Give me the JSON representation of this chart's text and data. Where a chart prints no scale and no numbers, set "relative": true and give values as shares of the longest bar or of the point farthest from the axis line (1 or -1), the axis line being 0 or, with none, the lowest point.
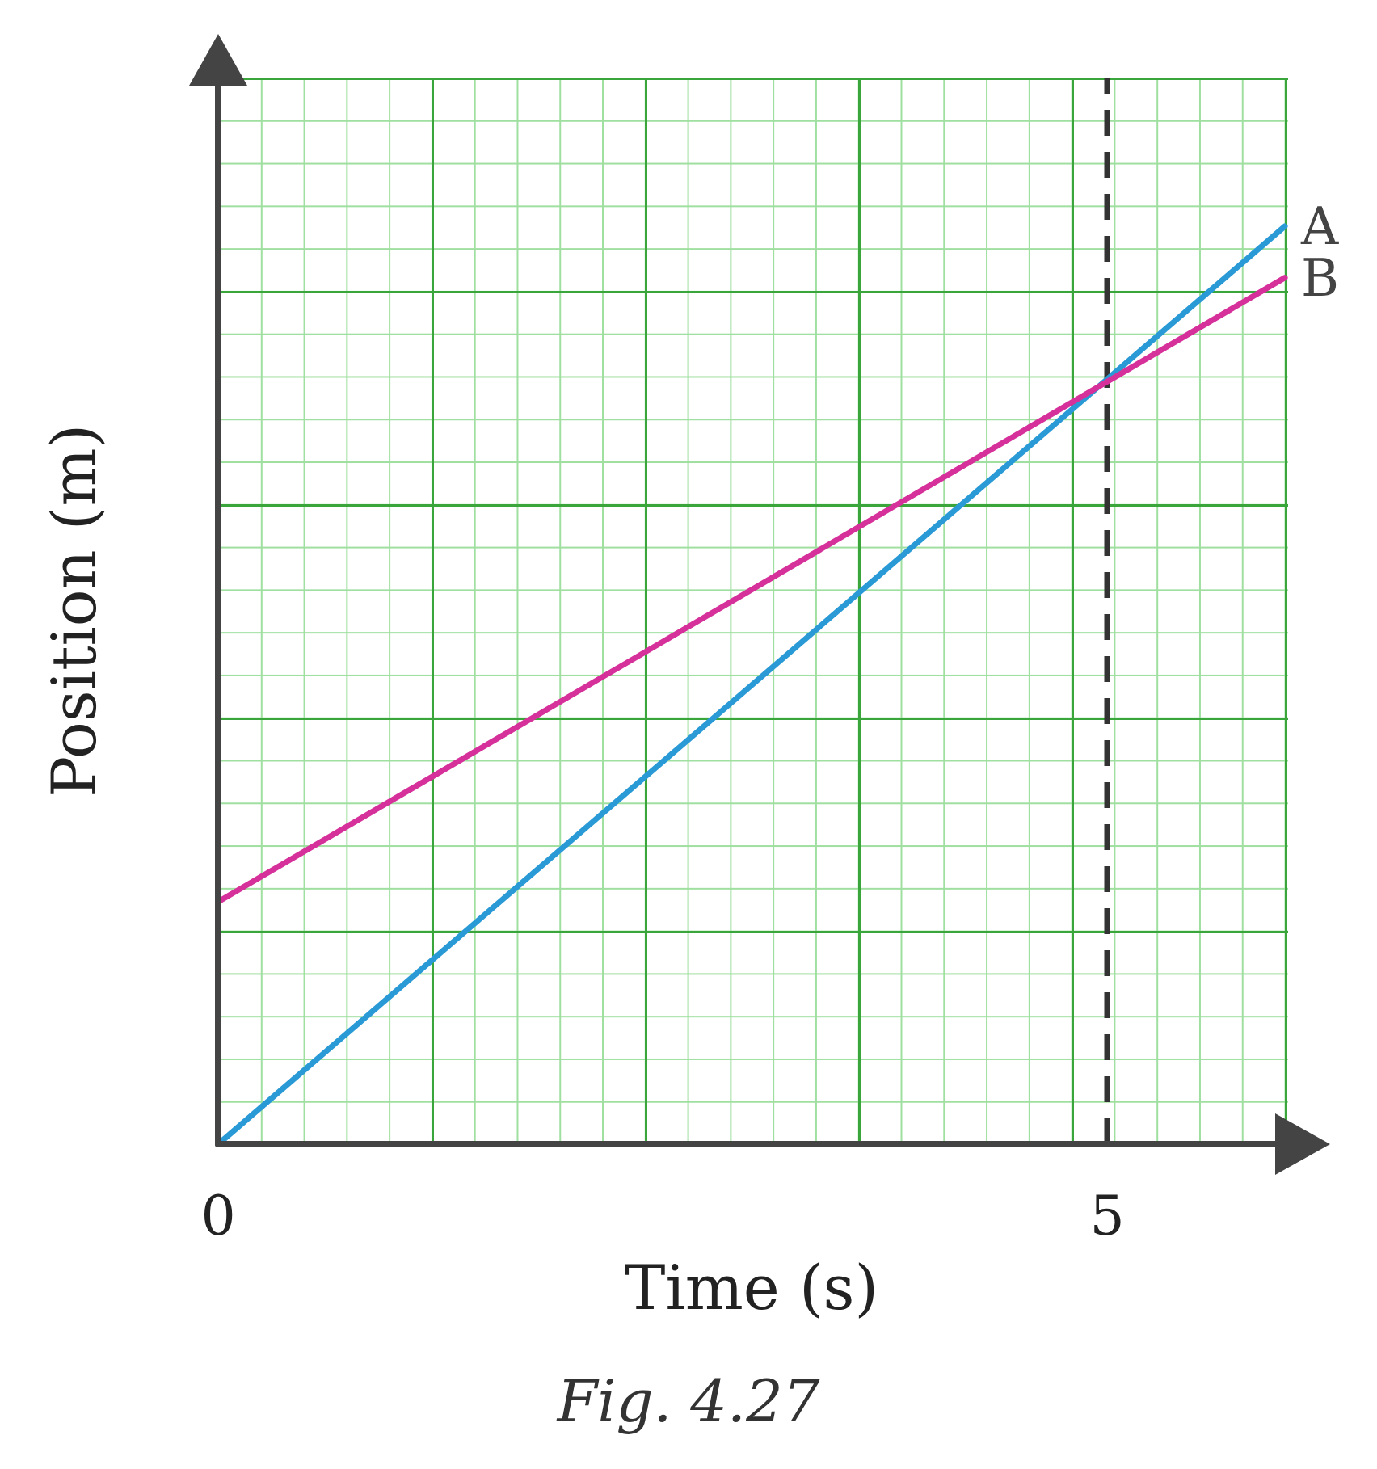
{
  "chart_data": {
    "type": "line",
    "title": "Fig. 4.27",
    "xlabel": "Time (s)",
    "ylabel": "Position (m)",
    "relative": true,
    "x": [
      0,
      6
    ],
    "xlim": [
      0,
      6
    ],
    "xticks": [
      0,
      5
    ],
    "legend": false,
    "line_style": "solid",
    "series": [
      {
        "name": "A",
        "color": "#2a9ad6",
        "values": [
          0,
          1
        ]
      },
      {
        "name": "B",
        "color": "#d6309a",
        "values": [
          0.264,
          0.944
        ]
      }
    ],
    "ref_lines": [
      {
        "axis": "x",
        "value": 5,
        "label": null,
        "color": "#333333",
        "line_style": "dashed"
      }
    ]
  }
}
